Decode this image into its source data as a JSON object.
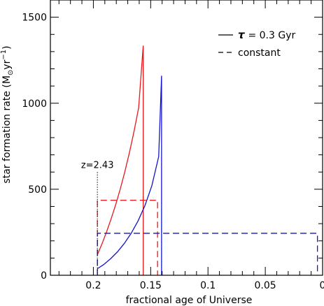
{
  "chart_data": {
    "type": "line",
    "xlabel": "fractional age of Universe",
    "ylabel": "star formation rate (M⊙yr⁻¹)",
    "xlim": [
      0.2375,
      0.0
    ],
    "ylim": [
      0,
      1600
    ],
    "x_reversed": true,
    "x_ticks": [
      {
        "value": 0.2,
        "label": "0.2"
      },
      {
        "value": 0.15,
        "label": "0.15"
      },
      {
        "value": 0.1,
        "label": "0.1"
      },
      {
        "value": 0.05,
        "label": "0.05"
      },
      {
        "value": 0.0,
        "label": "0"
      }
    ],
    "y_ticks": [
      {
        "value": 0,
        "label": "0"
      },
      {
        "value": 500,
        "label": "500"
      },
      {
        "value": 1000,
        "label": "1000"
      },
      {
        "value": 1500,
        "label": "1500"
      }
    ],
    "legend": {
      "placement": "top-right",
      "entries": [
        {
          "style": "solid",
          "symbol": "τ",
          "label": " = 0.3 Gyr"
        },
        {
          "style": "dashed",
          "label": "constant"
        }
      ]
    },
    "annotation": {
      "text": "z=2.43",
      "x": 0.1965,
      "y_top": 600
    },
    "series": [
      {
        "color": "#e8171b",
        "style": "solid",
        "x": [
          0.1965,
          0.1925,
          0.1885,
          0.1845,
          0.1805,
          0.1765,
          0.1725,
          0.1685,
          0.1645,
          0.1605,
          0.1565,
          0.1565
        ],
        "y": [
          120,
          182,
          252,
          328,
          411,
          502,
          603,
          714,
          837,
          973,
          1335,
          0
        ]
      },
      {
        "color": "#1414c8",
        "style": "solid",
        "x": [
          0.1965,
          0.191,
          0.185,
          0.179,
          0.173,
          0.167,
          0.161,
          0.155,
          0.149,
          0.143,
          0.1405,
          0.1405
        ],
        "y": [
          38,
          62,
          96,
          136,
          185,
          244,
          316,
          405,
          520,
          690,
          1160,
          0
        ]
      },
      {
        "color": "#e8171b",
        "style": "dashed",
        "x": [
          0.1965,
          0.1965,
          0.144,
          0.144
        ],
        "y": [
          0,
          436,
          436,
          0
        ]
      },
      {
        "color": "#1414c8",
        "style": "dashed",
        "x": [
          0.1965,
          0.1965,
          0.0045,
          0.0045
        ],
        "y": [
          0,
          244,
          244,
          0
        ]
      }
    ]
  }
}
